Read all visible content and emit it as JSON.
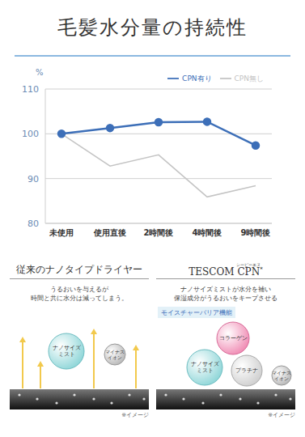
{
  "chart_data": {
    "type": "line",
    "title": "毛髪水分量の持続性",
    "ylabel": "%",
    "categories": [
      "未使用",
      "使用直後",
      "2時間後",
      "4時間後",
      "9時間後"
    ],
    "series": [
      {
        "name": "CPN有り",
        "color": "#3d6fb8",
        "values": [
          100,
          101.3,
          102.6,
          102.7,
          97.4
        ],
        "marker": "circle"
      },
      {
        "name": "CPN無し",
        "color": "#c4c4c4",
        "values": [
          100,
          92.8,
          95.3,
          85.9,
          88.4
        ],
        "marker": "none"
      }
    ],
    "ylim": [
      80,
      110
    ],
    "yticks": [
      80,
      90,
      100,
      110
    ],
    "grid": true,
    "legend": "upper right"
  },
  "panels": [
    {
      "heading": "従来のナノタイプドライヤー",
      "text": [
        "うるおいを与えるが",
        "時間と共に水分は減ってしまう。"
      ],
      "bubbles": [
        "ナノサイズ\nミスト",
        "マイナス\nイオン"
      ],
      "note": "※イメージ"
    },
    {
      "heading": "TESCOM",
      "heading_main": "CPN",
      "heading_ruby": "シーピーエヌ",
      "heading_mark": "*",
      "text": [
        "ナノサイズミストが水分を補い",
        "保湿成分がうるおいをキープさせる"
      ],
      "badge": "モイスチャーバリア機能",
      "bubbles": [
        "コラーゲン",
        "ナノサイズ\nミスト",
        "プラチナ",
        "マイナス\nイオン"
      ],
      "note": "※イメージ"
    }
  ]
}
